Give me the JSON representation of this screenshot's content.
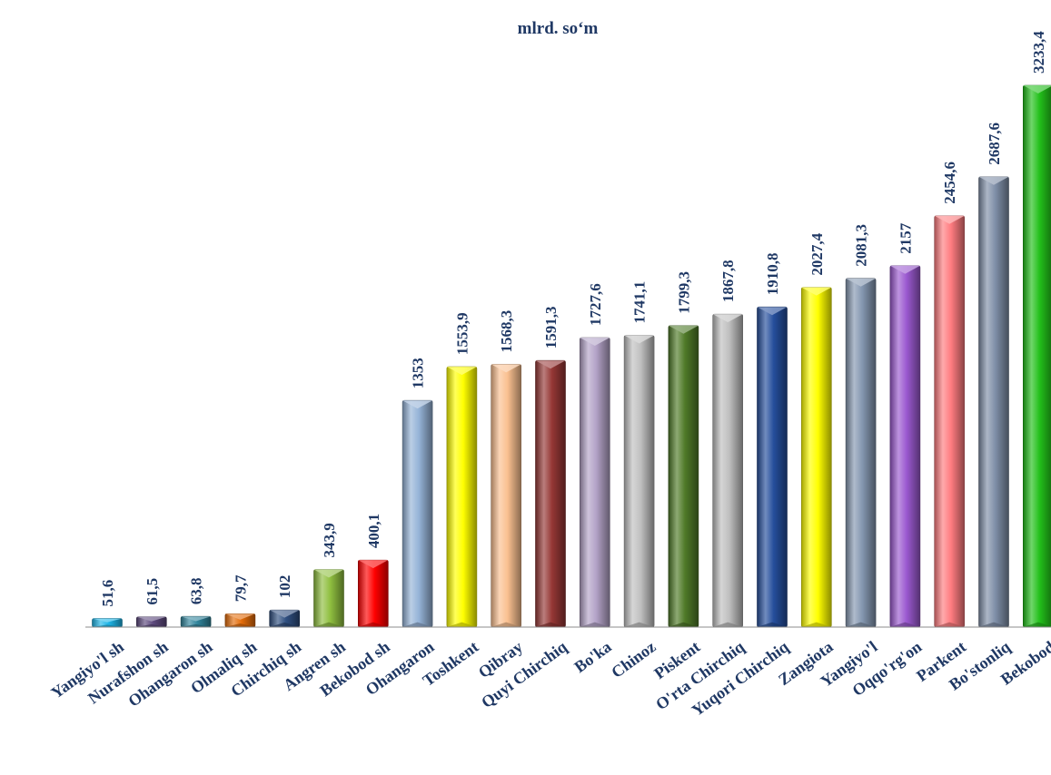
{
  "chart_data": {
    "type": "bar",
    "unit_label": "mlrd. so‘m",
    "categories": [
      "Yangiyo'l sh",
      "Nurafshon sh",
      "Ohangaron sh",
      "Olmaliq sh",
      "Chirchiq sh",
      "Angren sh",
      "Bekobod sh",
      "Ohangaron",
      "Toshkent",
      "Qibray",
      "Quyi Chirchiq",
      "Bo'ka",
      "Chinoz",
      "Piskent",
      "O'rta Chirchiq",
      "Yuqori Chirchiq",
      "Zangiota",
      "Yangiyo'l",
      "Oqqo'rg'on",
      "Parkent",
      "Bo'stonliq",
      "Bekobod"
    ],
    "values": [
      51.6,
      61.5,
      63.8,
      79.7,
      102,
      343.9,
      400.1,
      1353,
      1553.9,
      1568.3,
      1591.3,
      1727.6,
      1741.1,
      1799.3,
      1867.8,
      1910.8,
      2027.4,
      2081.3,
      2157,
      2454.6,
      2687.6,
      3233.4
    ],
    "value_labels": [
      "51,6",
      "61,5",
      "63,8",
      "79,7",
      "102",
      "343,9",
      "400,1",
      "1353",
      "1553,9",
      "1568,3",
      "1591,3",
      "1727,6",
      "1741,1",
      "1799,3",
      "1867,8",
      "1910,8",
      "2027,4",
      "2081,3",
      "2157",
      "2454,6",
      "2687,6",
      "3233,4"
    ],
    "colors": [
      "#1fb6e8",
      "#5e4a7e",
      "#31859c",
      "#e36c09",
      "#2f4f80",
      "#8fbf3f",
      "#ff0000",
      "#95b3d7",
      "#ffff00",
      "#fac090",
      "#953735",
      "#b3a2c7",
      "#c0c0c0",
      "#4f7a28",
      "#bfbfbf",
      "#254e9c",
      "#ffff00",
      "#8497b0",
      "#9b59d0",
      "#ff7c80",
      "#7f8fa8",
      "#22c01a"
    ],
    "ylim": [
      0,
      3233.4
    ],
    "grid": false,
    "legend": "none"
  }
}
